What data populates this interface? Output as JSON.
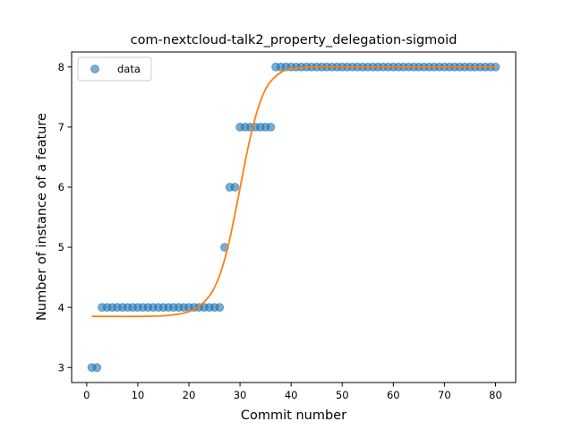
{
  "chart_data": {
    "type": "scatter",
    "title": "com-nextcloud-talk2_property_delegation-sigmoid",
    "xlabel": "Commit number",
    "ylabel": "Number of instance of a feature",
    "xlim": [
      -2.95,
      83.95
    ],
    "ylim": [
      2.75,
      8.25
    ],
    "xticks": [
      0,
      10,
      20,
      30,
      40,
      50,
      60,
      70,
      80
    ],
    "yticks": [
      3,
      4,
      5,
      6,
      7,
      8
    ],
    "grid": false,
    "legend": {
      "placement": "top-left",
      "entries": [
        "data"
      ]
    },
    "series": [
      {
        "name": "data",
        "kind": "scatter",
        "color": "#1f77b4",
        "x": [
          1,
          2,
          3,
          4,
          5,
          6,
          7,
          8,
          9,
          10,
          11,
          12,
          13,
          14,
          15,
          16,
          17,
          18,
          19,
          20,
          21,
          22,
          23,
          24,
          25,
          26,
          27,
          28,
          29,
          30,
          31,
          32,
          33,
          34,
          35,
          36,
          37,
          38,
          39,
          40,
          41,
          42,
          43,
          44,
          45,
          46,
          47,
          48,
          49,
          50,
          51,
          52,
          53,
          54,
          55,
          56,
          57,
          58,
          59,
          60,
          61,
          62,
          63,
          64,
          65,
          66,
          67,
          68,
          69,
          70,
          71,
          72,
          73,
          74,
          75,
          76,
          77,
          78,
          79,
          80
        ],
        "y": [
          3,
          3,
          4,
          4,
          4,
          4,
          4,
          4,
          4,
          4,
          4,
          4,
          4,
          4,
          4,
          4,
          4,
          4,
          4,
          4,
          4,
          4,
          4,
          4,
          4,
          4,
          5,
          6,
          6,
          7,
          7,
          7,
          7,
          7,
          7,
          7,
          8,
          8,
          8,
          8,
          8,
          8,
          8,
          8,
          8,
          8,
          8,
          8,
          8,
          8,
          8,
          8,
          8,
          8,
          8,
          8,
          8,
          8,
          8,
          8,
          8,
          8,
          8,
          8,
          8,
          8,
          8,
          8,
          8,
          8,
          8,
          8,
          8,
          8,
          8,
          8,
          8,
          8,
          8,
          8
        ]
      },
      {
        "name": "",
        "kind": "line",
        "color": "#ff7f0e",
        "x": [
          1,
          5,
          10,
          15,
          18,
          20,
          22,
          24,
          25,
          26,
          27,
          28,
          29,
          30,
          31,
          32,
          33,
          34,
          35,
          36,
          38,
          40,
          45,
          50,
          60,
          70,
          80
        ],
        "y": [
          3.85,
          3.85,
          3.85,
          3.86,
          3.89,
          3.93,
          4.02,
          4.19,
          4.33,
          4.53,
          4.8,
          5.14,
          5.55,
          5.98,
          6.42,
          6.82,
          7.16,
          7.43,
          7.63,
          7.76,
          7.91,
          7.97,
          8.0,
          8.0,
          8.0,
          8.0,
          8.0
        ]
      }
    ]
  }
}
